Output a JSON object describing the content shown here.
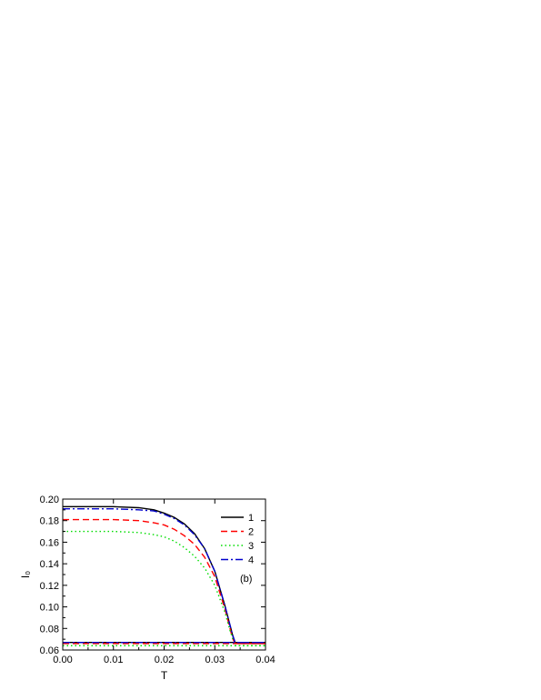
{
  "chart_data": {
    "type": "line",
    "title": "",
    "xlabel": "T",
    "ylabel": "I₀",
    "xlim": [
      0.0,
      0.04
    ],
    "ylim": [
      0.06,
      0.2
    ],
    "x_ticks": [
      "0.00",
      "0.01",
      "0.02",
      "0.03",
      "0.04"
    ],
    "y_ticks": [
      "0.06",
      "0.08",
      "0.10",
      "0.12",
      "0.14",
      "0.16",
      "0.18",
      "0.20"
    ],
    "grid": false,
    "legend_position": "top-right",
    "annotation": "(b)",
    "series": [
      {
        "name": "1",
        "color": "#000000",
        "dash": "solid",
        "x": [
          0.0,
          0.005,
          0.01,
          0.015,
          0.018,
          0.02,
          0.022,
          0.024,
          0.026,
          0.028,
          0.03,
          0.032,
          0.0335,
          0.034,
          0.036,
          0.04
        ],
        "y": [
          0.193,
          0.193,
          0.193,
          0.192,
          0.19,
          0.187,
          0.183,
          0.177,
          0.168,
          0.154,
          0.133,
          0.101,
          0.074,
          0.067,
          0.067,
          0.067
        ],
        "baseline": 0.067
      },
      {
        "name": "2",
        "color": "#ff0000",
        "dash": "dashed",
        "x": [
          0.0,
          0.005,
          0.01,
          0.015,
          0.018,
          0.02,
          0.022,
          0.024,
          0.026,
          0.028,
          0.03,
          0.032,
          0.0335,
          0.034,
          0.036,
          0.04
        ],
        "y": [
          0.181,
          0.181,
          0.181,
          0.18,
          0.178,
          0.176,
          0.172,
          0.166,
          0.158,
          0.146,
          0.128,
          0.098,
          0.071,
          0.066,
          0.066,
          0.066
        ],
        "baseline": 0.066
      },
      {
        "name": "3",
        "color": "#00dd00",
        "dash": "dotted",
        "x": [
          0.0,
          0.005,
          0.01,
          0.015,
          0.018,
          0.02,
          0.022,
          0.024,
          0.026,
          0.028,
          0.03,
          0.032,
          0.033,
          0.034,
          0.036,
          0.04
        ],
        "y": [
          0.17,
          0.17,
          0.17,
          0.169,
          0.167,
          0.165,
          0.161,
          0.155,
          0.147,
          0.136,
          0.12,
          0.095,
          0.078,
          0.064,
          0.064,
          0.064
        ],
        "baseline": 0.064
      },
      {
        "name": "4",
        "color": "#0000cc",
        "dash": "dashdot",
        "x": [
          0.0,
          0.005,
          0.01,
          0.015,
          0.018,
          0.02,
          0.022,
          0.024,
          0.026,
          0.028,
          0.03,
          0.032,
          0.0335,
          0.034,
          0.036,
          0.04
        ],
        "y": [
          0.191,
          0.191,
          0.191,
          0.19,
          0.189,
          0.186,
          0.182,
          0.176,
          0.167,
          0.154,
          0.133,
          0.101,
          0.074,
          0.067,
          0.067,
          0.067
        ],
        "baseline": 0.067
      }
    ]
  }
}
